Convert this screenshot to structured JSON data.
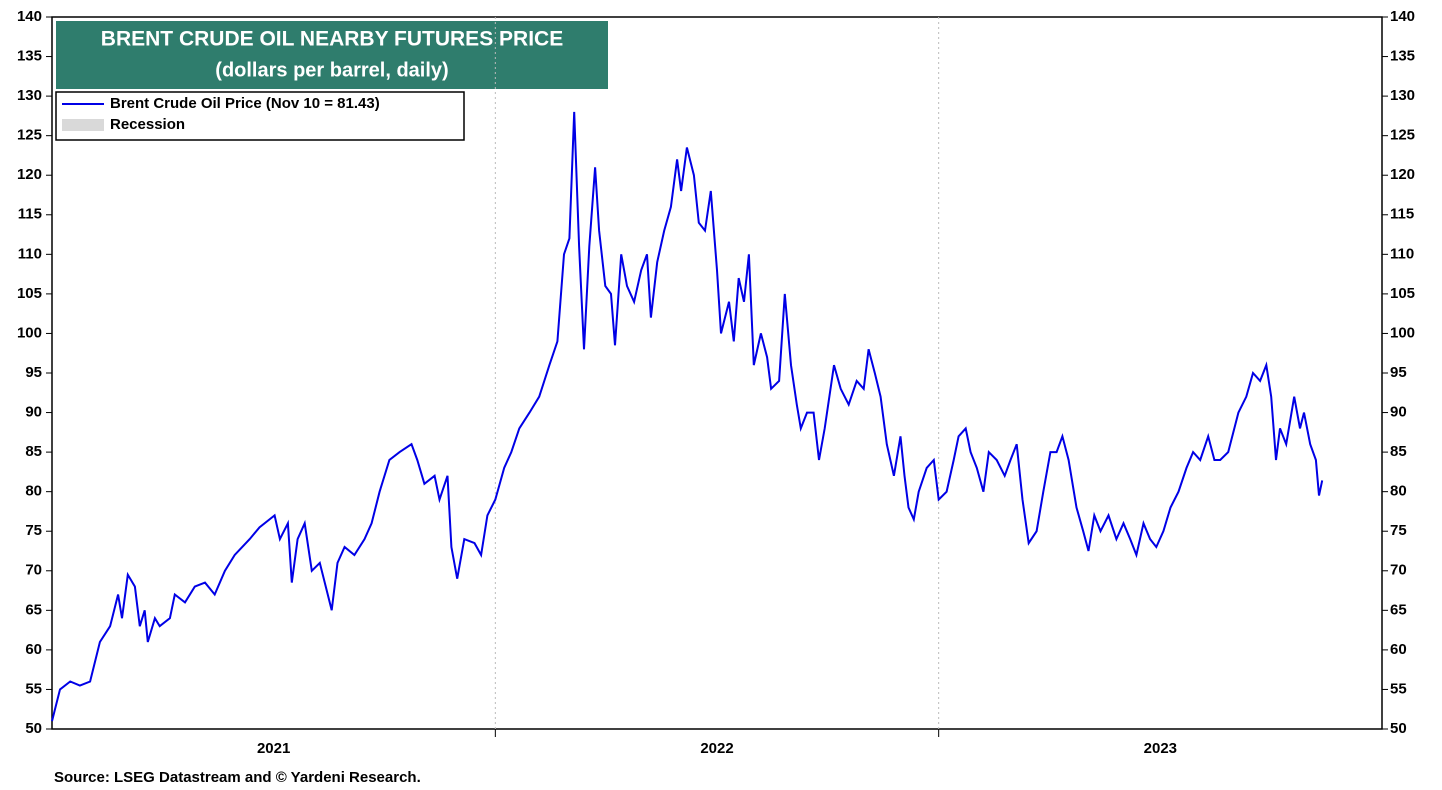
{
  "chart_data": {
    "type": "line",
    "title": "BRENT CRUDE OIL NEARBY FUTURES PRICE",
    "subtitle": "(dollars per barrel, daily)",
    "source": "Source: LSEG Datastream and © Yardeni Research.",
    "x": [
      2021.0,
      2021.018,
      2021.041,
      2021.063,
      2021.086,
      2021.108,
      2021.131,
      2021.149,
      2021.158,
      2021.171,
      2021.187,
      2021.198,
      2021.209,
      2021.216,
      2021.232,
      2021.243,
      2021.266,
      2021.277,
      2021.3,
      2021.322,
      2021.345,
      2021.367,
      2021.39,
      2021.412,
      2021.446,
      2021.468,
      2021.502,
      2021.514,
      2021.532,
      2021.541,
      2021.554,
      2021.57,
      2021.586,
      2021.604,
      2021.631,
      2021.644,
      2021.66,
      2021.682,
      2021.705,
      2021.721,
      2021.739,
      2021.761,
      2021.784,
      2021.811,
      2021.824,
      2021.84,
      2021.863,
      2021.874,
      2021.892,
      2021.901,
      2021.914,
      2021.93,
      2021.953,
      2021.968,
      2021.982,
      2022.0,
      2022.02,
      2022.036,
      2022.054,
      2022.077,
      2022.099,
      2022.122,
      2022.14,
      2022.155,
      2022.167,
      2022.178,
      2022.189,
      2022.2,
      2022.212,
      2022.225,
      2022.234,
      2022.248,
      2022.261,
      2022.27,
      2022.284,
      2022.297,
      2022.313,
      2022.329,
      2022.342,
      2022.351,
      2022.365,
      2022.381,
      2022.396,
      2022.41,
      2022.419,
      2022.432,
      2022.448,
      2022.459,
      2022.473,
      2022.486,
      2022.5,
      2022.509,
      2022.527,
      2022.538,
      2022.549,
      2022.561,
      2022.572,
      2022.583,
      2022.599,
      2022.613,
      2022.622,
      2022.64,
      2022.653,
      2022.667,
      2022.68,
      2022.689,
      2022.703,
      2022.718,
      2022.73,
      2022.743,
      2022.764,
      2022.779,
      2022.797,
      2022.815,
      2022.831,
      2022.842,
      2022.856,
      2022.869,
      2022.883,
      2022.899,
      2022.914,
      2022.923,
      2022.932,
      2022.944,
      2022.955,
      2022.973,
      2022.989,
      2023.0,
      2023.018,
      2023.034,
      2023.045,
      2023.061,
      2023.072,
      2023.086,
      2023.101,
      2023.113,
      2023.131,
      2023.149,
      2023.162,
      2023.176,
      2023.189,
      2023.203,
      2023.221,
      2023.236,
      2023.252,
      2023.266,
      2023.279,
      2023.293,
      2023.311,
      2023.326,
      2023.338,
      2023.351,
      2023.365,
      2023.383,
      2023.401,
      2023.417,
      2023.432,
      2023.446,
      2023.462,
      2023.477,
      2023.491,
      2023.507,
      2023.523,
      2023.541,
      2023.559,
      2023.574,
      2023.59,
      2023.608,
      2023.622,
      2023.635,
      2023.653,
      2023.676,
      2023.694,
      2023.709,
      2023.725,
      2023.739,
      2023.75,
      2023.761,
      2023.77,
      2023.784,
      2023.802,
      2023.815,
      2023.824,
      2023.838,
      2023.851,
      2023.858,
      2023.865
    ],
    "series": [
      {
        "name": "Brent Crude Oil Price (Nov 10 = 81.43)",
        "color": "#0000e6",
        "values": [
          51,
          55,
          56,
          55.5,
          56,
          61,
          63,
          67,
          64,
          69.5,
          68,
          63,
          65,
          61,
          64,
          63,
          64,
          67,
          66,
          68,
          68.5,
          67,
          70,
          72,
          74,
          75.5,
          77,
          74,
          76,
          68.5,
          74,
          76,
          70,
          71,
          65,
          71,
          73,
          72,
          74,
          76,
          80,
          84,
          85,
          86,
          84,
          81,
          82,
          79,
          82,
          73,
          69,
          74,
          73.5,
          72,
          77,
          79,
          83,
          85,
          88,
          90,
          92,
          96,
          99,
          110,
          112,
          128,
          111,
          98,
          111,
          121,
          113,
          106,
          105,
          98.5,
          110,
          106,
          104,
          108,
          110,
          102,
          109,
          113,
          116,
          122,
          118,
          123.5,
          120,
          114,
          113,
          118,
          108,
          100,
          104,
          99,
          107,
          104,
          110,
          96,
          100,
          97,
          93,
          94,
          105,
          96,
          91,
          88,
          90,
          90,
          84,
          88,
          96,
          93,
          91,
          94,
          93,
          98,
          95,
          92,
          86,
          82,
          87,
          82,
          78,
          76.5,
          80,
          83,
          84,
          79,
          80,
          84,
          87,
          88,
          85,
          83,
          80,
          85,
          84,
          82,
          84,
          86,
          79,
          73.5,
          75,
          80,
          85,
          85,
          87,
          84,
          78,
          75,
          72.5,
          77,
          75,
          77,
          74,
          76,
          74,
          72,
          76,
          74,
          73,
          75,
          78,
          80,
          83,
          85,
          84,
          87,
          84,
          84,
          85,
          90,
          92,
          95,
          94,
          96,
          92,
          84,
          88,
          86,
          92,
          88,
          90,
          86,
          84,
          79.5,
          81.43
        ]
      }
    ],
    "legend_extra": {
      "name": "Recession",
      "color": "#d9d9d9"
    },
    "xlim": [
      2021,
      2024
    ],
    "xticks": [
      {
        "value": 2021.5,
        "label": "2021"
      },
      {
        "value": 2022.5,
        "label": "2022"
      },
      {
        "value": 2023.5,
        "label": "2023"
      }
    ],
    "xgrid": [
      2022,
      2023
    ],
    "ylim": [
      50,
      140
    ],
    "yticks": [
      50,
      55,
      60,
      65,
      70,
      75,
      80,
      85,
      90,
      95,
      100,
      105,
      110,
      115,
      120,
      125,
      130,
      135,
      140
    ],
    "legend": "upper left"
  }
}
